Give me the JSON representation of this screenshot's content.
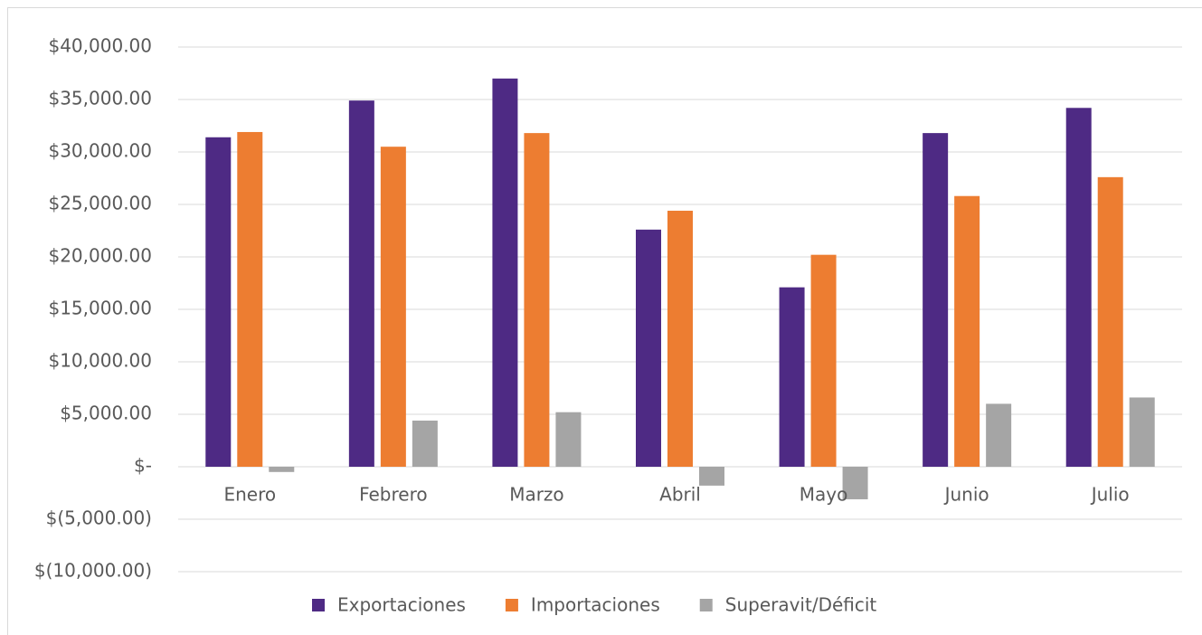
{
  "chart_data": {
    "type": "bar",
    "categories": [
      "Enero",
      "Febrero",
      "Marzo",
      "Abril",
      "Mayo",
      "Junio",
      "Julio"
    ],
    "series": [
      {
        "name": "Exportaciones",
        "color": "#4e2a84",
        "values": [
          31400,
          34900,
          37000,
          22600,
          17100,
          31800,
          34200
        ]
      },
      {
        "name": "Importaciones",
        "color": "#ed7d31",
        "values": [
          31900,
          30500,
          31800,
          24400,
          20200,
          25800,
          27600
        ]
      },
      {
        "name": "Superavit/Déficit",
        "color": "#a5a5a5",
        "values": [
          -500,
          4400,
          5200,
          -1800,
          -3100,
          6000,
          6600
        ]
      }
    ],
    "ylim": [
      -10000,
      40000
    ],
    "yticks": [
      {
        "value": -10000,
        "label": "$(10,000.00)"
      },
      {
        "value": -5000,
        "label": "$(5,000.00)"
      },
      {
        "value": 0,
        "label": "$-"
      },
      {
        "value": 5000,
        "label": "$5,000.00"
      },
      {
        "value": 10000,
        "label": "$10,000.00"
      },
      {
        "value": 15000,
        "label": "$15,000.00"
      },
      {
        "value": 20000,
        "label": "$20,000.00"
      },
      {
        "value": 25000,
        "label": "$25,000.00"
      },
      {
        "value": 30000,
        "label": "$30,000.00"
      },
      {
        "value": 35000,
        "label": "$35,000.00"
      },
      {
        "value": 40000,
        "label": "$40,000.00"
      }
    ],
    "grid": true,
    "legend": "bottom"
  }
}
